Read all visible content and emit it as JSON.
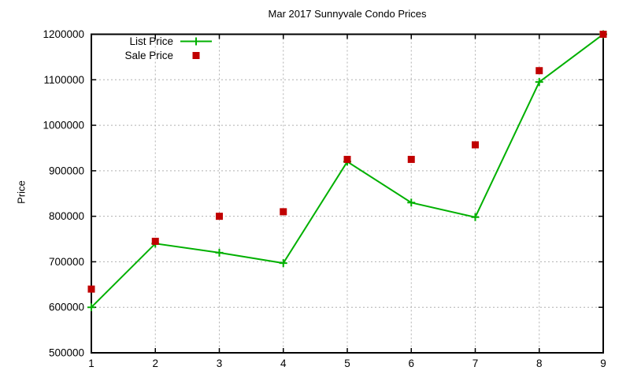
{
  "chart_data": {
    "type": "line",
    "title": "Mar 2017 Sunnyvale Condo Prices",
    "xlabel": "",
    "ylabel": "Price",
    "x": [
      1,
      2,
      3,
      4,
      5,
      6,
      7,
      8,
      9
    ],
    "series": [
      {
        "name": "List Price",
        "style": "linespoints",
        "marker": "plus",
        "color": "#00b000",
        "values": [
          600000,
          740000,
          720000,
          697000,
          920000,
          830000,
          798000,
          1095000,
          1200000
        ]
      },
      {
        "name": "Sale Price",
        "style": "points",
        "marker": "square",
        "color": "#c00000",
        "values": [
          640000,
          745000,
          800000,
          810000,
          925000,
          925000,
          957000,
          1120000,
          1200000
        ]
      }
    ],
    "xlim": [
      1,
      9
    ],
    "ylim": [
      500000,
      1200000
    ],
    "x_ticks": [
      1,
      2,
      3,
      4,
      5,
      6,
      7,
      8,
      9
    ],
    "y_ticks": [
      500000,
      600000,
      700000,
      800000,
      900000,
      1000000,
      1100000,
      1200000
    ],
    "grid": true,
    "grid_style": "dotted",
    "grid_color": "#b0b0b0",
    "axis_color": "#000000",
    "background": "#ffffff",
    "legend_position": "top-left"
  }
}
